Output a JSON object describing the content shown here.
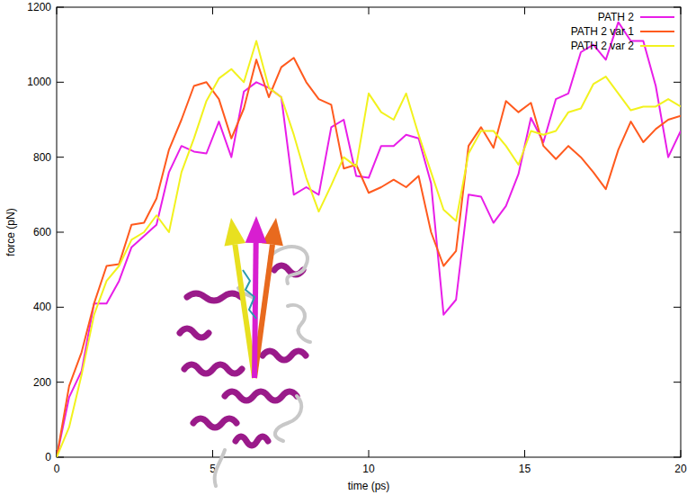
{
  "chart_data": {
    "type": "line",
    "x_label": "time (ps)",
    "y_label": "force (pN)",
    "x": [
      0,
      0.4,
      0.8,
      1.2,
      1.6,
      2,
      2.4,
      2.8,
      3.2,
      3.6,
      4,
      4.4,
      4.8,
      5.2,
      5.6,
      6,
      6.4,
      6.8,
      7.2,
      7.6,
      8,
      8.4,
      8.8,
      9.2,
      9.6,
      10,
      10.4,
      10.8,
      11.2,
      11.6,
      12,
      12.4,
      12.8,
      13.2,
      13.6,
      14,
      14.4,
      14.8,
      15.2,
      15.6,
      16,
      16.4,
      16.8,
      17.2,
      17.6,
      18,
      18.4,
      18.8,
      19.2,
      19.6,
      20
    ],
    "series": [
      {
        "name": "PATH 2",
        "color": "#e81ee8",
        "values": [
          0,
          160,
          230,
          410,
          410,
          470,
          560,
          590,
          620,
          760,
          830,
          815,
          810,
          895,
          800,
          975,
          1000,
          985,
          960,
          700,
          720,
          700,
          880,
          900,
          750,
          745,
          830,
          830,
          860,
          850,
          730,
          380,
          420,
          700,
          695,
          625,
          670,
          755,
          905,
          840,
          955,
          970,
          1080,
          1100,
          1060,
          1160,
          1110,
          1110,
          990,
          800,
          870
        ]
      },
      {
        "name": "PATH 2 var 1",
        "color": "#ff5a1e",
        "values": [
          0,
          190,
          280,
          410,
          510,
          515,
          620,
          625,
          690,
          820,
          900,
          990,
          1000,
          955,
          850,
          930,
          1060,
          960,
          1040,
          1065,
          1000,
          955,
          940,
          770,
          780,
          705,
          720,
          740,
          720,
          750,
          600,
          510,
          550,
          830,
          880,
          825,
          950,
          920,
          945,
          830,
          795,
          830,
          800,
          760,
          715,
          820,
          895,
          840,
          875,
          900,
          910
        ]
      },
      {
        "name": "PATH 2 var 2",
        "color": "#f2f21e",
        "values": [
          0,
          80,
          220,
          380,
          470,
          510,
          580,
          600,
          645,
          600,
          760,
          850,
          950,
          1010,
          1035,
          1000,
          1110,
          985,
          960,
          860,
          745,
          655,
          725,
          800,
          775,
          970,
          920,
          900,
          970,
          860,
          760,
          660,
          630,
          810,
          870,
          870,
          830,
          780,
          870,
          860,
          870,
          920,
          930,
          995,
          1015,
          970,
          925,
          935,
          935,
          955,
          935
        ]
      }
    ],
    "xlim": [
      0,
      20
    ],
    "xticks": [
      0,
      5,
      10,
      15,
      20
    ],
    "ylim": [
      0,
      1200
    ],
    "yticks": [
      0,
      200,
      400,
      600,
      800,
      1000,
      1200
    ],
    "grid": false,
    "legend": "upper right"
  }
}
